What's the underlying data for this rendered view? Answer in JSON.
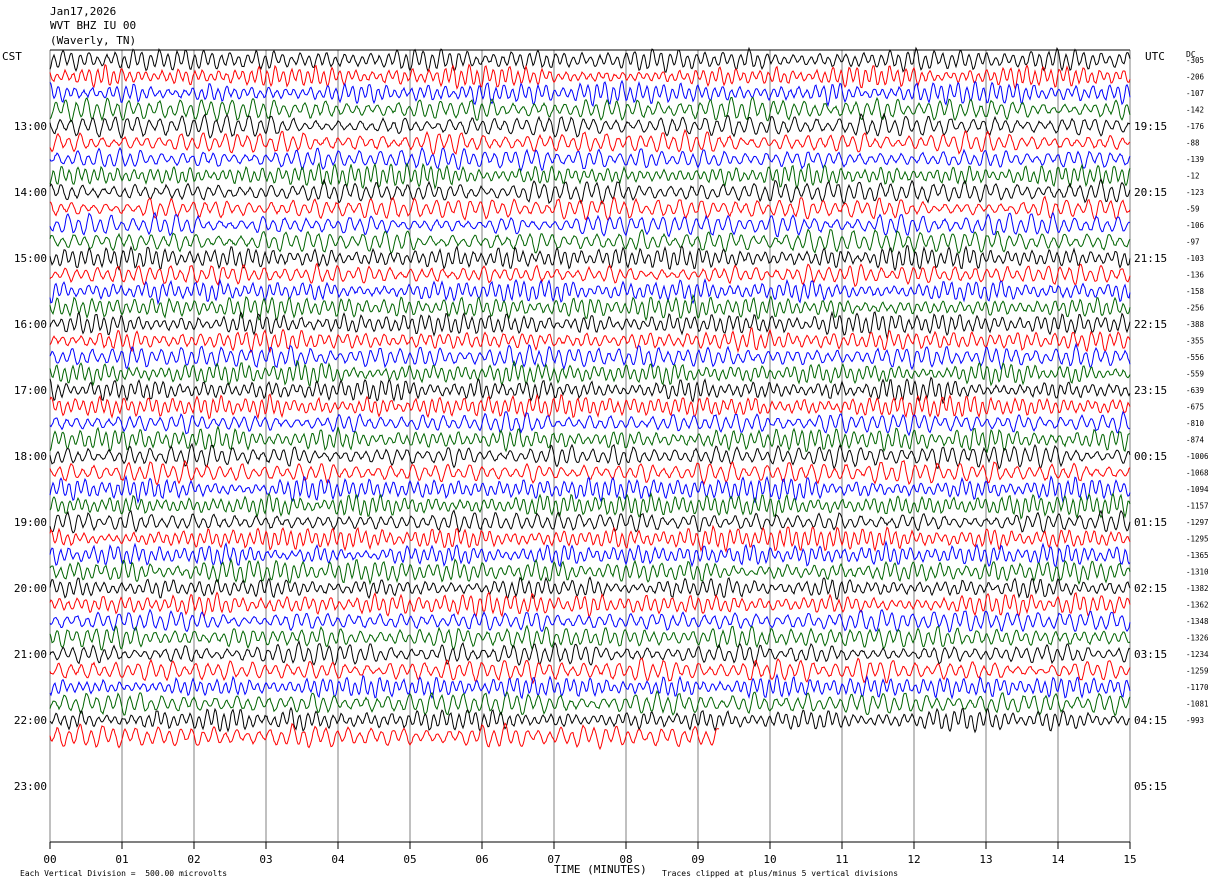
{
  "header": {
    "date": "Jan17,2026",
    "station": "WVT BHZ IU 00",
    "location": "(Waverly, TN)"
  },
  "left_label": "CST",
  "right_label": "UTC",
  "dc_label": "DC",
  "footer": {
    "scale_note": "Each Vertical Division =  500.00 microvolts",
    "xaxis_title": "TIME (MINUTES)",
    "clip_note": "Traces clipped at plus/minus 5 vertical divisions"
  },
  "colors": {
    "trace_cycle": [
      "#000000",
      "#ff0000",
      "#0000ff",
      "#006400"
    ],
    "grid": "#808080",
    "axis": "#000000"
  },
  "chart_data": {
    "type": "line",
    "description_type": "helicorder",
    "x_ticks": [
      "00",
      "01",
      "02",
      "03",
      "04",
      "05",
      "06",
      "07",
      "08",
      "09",
      "10",
      "11",
      "12",
      "13",
      "14",
      "15"
    ],
    "xlim": [
      0,
      15
    ],
    "local_hour_labels": [
      "13:00",
      "14:00",
      "15:00",
      "16:00",
      "17:00",
      "18:00",
      "19:00",
      "20:00",
      "21:00",
      "22:00",
      "23:00"
    ],
    "utc_hour_labels": [
      "19:15",
      "20:15",
      "21:15",
      "22:15",
      "23:15",
      "00:15",
      "01:15",
      "02:15",
      "03:15",
      "04:15",
      "05:15"
    ],
    "dc_offsets": [
      "-305",
      "-206",
      "-107",
      "-142",
      "-176",
      "-88",
      "-139",
      "-12",
      "-123",
      "-59",
      "-106",
      "-97",
      "-103",
      "-136",
      "-158",
      "-256",
      "-388",
      "-355",
      "-556",
      "-559",
      "-639",
      "-675",
      "-810",
      "-874",
      "-1006",
      "-1068",
      "-1094",
      "-1157",
      "-1297",
      "-1295",
      "-1365",
      "-1310",
      "-1382",
      "-1362",
      "-1348",
      "-1326",
      "-1234",
      "-1259",
      "-1170",
      "-1081",
      "-993"
    ],
    "trace_count": 42,
    "last_trace_end_minute": 9.3
  }
}
